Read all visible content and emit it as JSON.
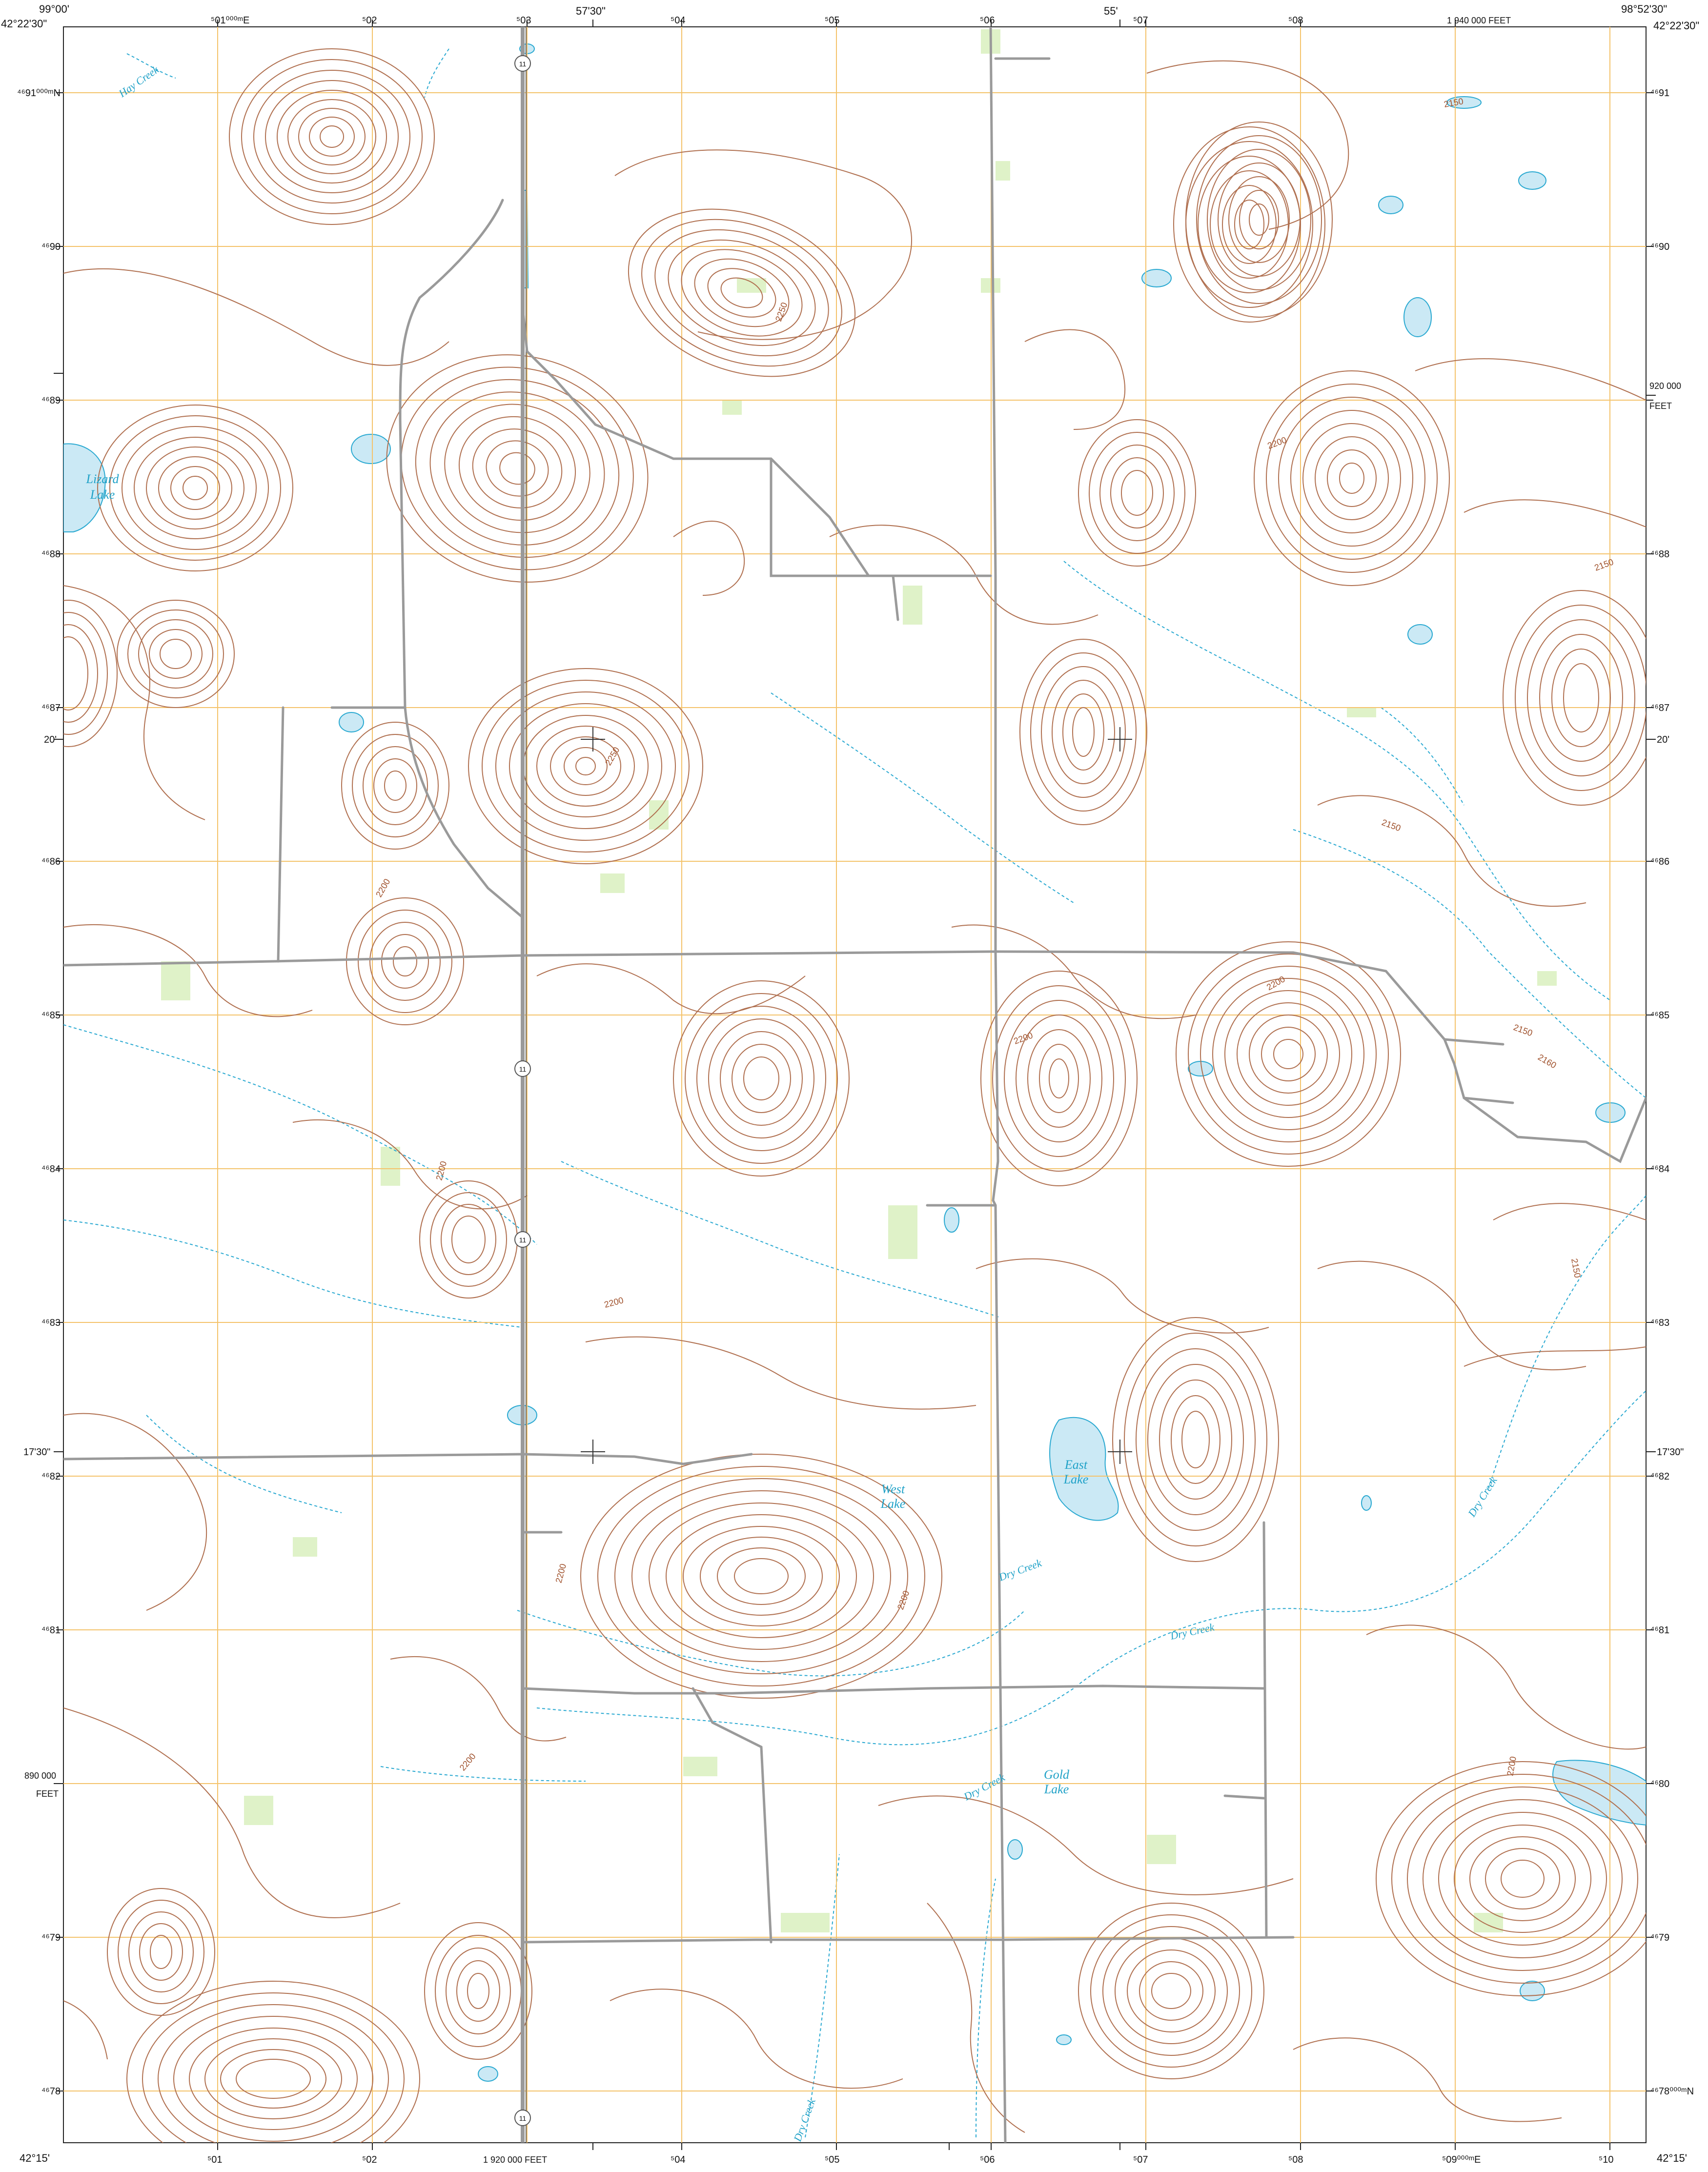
{
  "map": {
    "colors": {
      "contour": "#b07050",
      "contour_index": "#9a5a3a",
      "water": "#2aa9d1",
      "water_fill": "#cbe9f5",
      "grid": "#f4c36b",
      "road": "#9a9a9a",
      "vegetation": "#dff2c8"
    },
    "collar": {
      "top_left_lon": "99°00'",
      "top_left_lat": "42°22'30\"",
      "top_mid_lon": "57'30\"",
      "top_55": "55'",
      "top_right_lon": "98°52'30\"",
      "top_right_lat": "42°22'30\"",
      "feet_top": "1 940 000 FEET",
      "bottom_left_lat": "42°15'",
      "bottom_right_lat": "42°15'",
      "feet_bottom": "1 920 000 FEET",
      "feet_920": "920 000",
      "feet_920_unit": "FEET",
      "feet_890": "890 000",
      "feet_890_unit": "FEET",
      "lat_20_left": "20'",
      "lat_20_right": "20'",
      "lat_1730_left": "17'30\"",
      "lat_1730_right": "17'30\"",
      "east_top": [
        "⁵01⁰⁰⁰ᵐE",
        "⁵02",
        "⁵03",
        "⁵04",
        "⁵05",
        "⁵06",
        "⁵07",
        "⁵08"
      ],
      "east_bottom": [
        "⁵01",
        "⁵02",
        "⁵04",
        "⁵05",
        "⁵06",
        "⁵07",
        "⁵08",
        "⁵09⁰⁰⁰ᵐE",
        "⁵10"
      ],
      "north_left": [
        "⁴⁶91⁰⁰⁰ᵐN",
        "⁴⁶90",
        "⁴⁶89",
        "⁴⁶88",
        "⁴⁶87",
        "⁴⁶86",
        "⁴⁶85",
        "⁴⁶84",
        "⁴⁶83",
        "⁴⁶82",
        "⁴⁶81",
        "⁴⁶80",
        "⁴⁶79",
        "⁴⁶78"
      ],
      "north_right": [
        "⁴⁶91",
        "⁴⁶90",
        "⁴⁶89",
        "⁴⁶88",
        "⁴⁶87",
        "⁴⁶86",
        "⁴⁶85",
        "⁴⁶84",
        "⁴⁶83",
        "⁴⁶82",
        "⁴⁶81",
        "⁴⁶80",
        "⁴⁶79",
        "⁴⁶78⁰⁰⁰ᵐN"
      ]
    },
    "features": {
      "lizard_lake": [
        "Lizard",
        "Lake"
      ],
      "west_lake": [
        "West",
        "Lake"
      ],
      "east_lake": [
        "East",
        "Lake"
      ],
      "gold_lake": [
        "Gold",
        "Lake"
      ],
      "dry_creek": "Dry Creek",
      "hay_creek": "Hay Creek",
      "route": "11"
    },
    "elevations": {
      "e2200": "2200",
      "e2150": "2150",
      "e2250": "2250",
      "e2160": "2160"
    }
  }
}
